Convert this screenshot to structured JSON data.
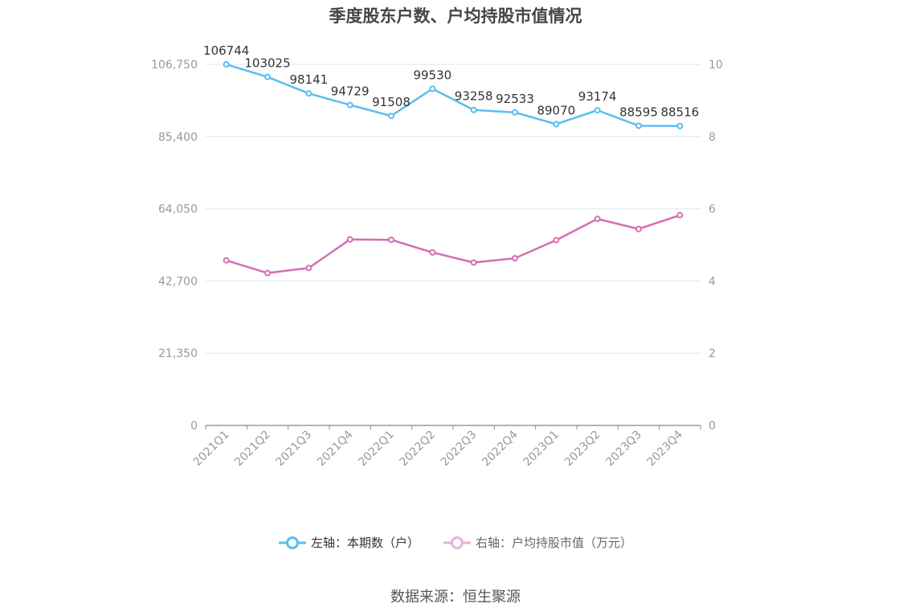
{
  "title": "季度股东户数、户均持股市值情况",
  "source": "数据来源：恒生聚源",
  "colors": {
    "left": "#5bbdee",
    "right": "#d56eb3",
    "grid": "#e3e6f0",
    "axis": "#999999",
    "tick_text": "#999999"
  },
  "chart_data": {
    "type": "line",
    "categories": [
      "2021Q1",
      "2021Q2",
      "2021Q3",
      "2021Q4",
      "2022Q1",
      "2022Q2",
      "2022Q3",
      "2022Q4",
      "2023Q1",
      "2023Q2",
      "2023Q3",
      "2023Q4"
    ],
    "left_axis": {
      "min": 0,
      "max": 106750,
      "ticks": [
        0,
        21350,
        42700,
        64050,
        85400,
        106750
      ],
      "tick_labels": [
        "0",
        "21,350",
        "42,700",
        "64,050",
        "85,400",
        "106,750"
      ]
    },
    "right_axis": {
      "min": 0,
      "max": 10,
      "ticks": [
        0,
        2,
        4,
        6,
        8,
        10
      ],
      "tick_labels": [
        "0",
        "2",
        "4",
        "6",
        "8",
        "10"
      ]
    },
    "series": [
      {
        "name": "左轴：本期数（户）",
        "axis": "left",
        "color": "#5bbdee",
        "values": [
          106744,
          103025,
          98141,
          94729,
          91508,
          99530,
          93258,
          92533,
          89070,
          93174,
          88595,
          88516
        ],
        "labels": [
          "106744",
          "103025",
          "98141",
          "94729",
          "91508",
          "99530",
          "93258",
          "92533",
          "89070",
          "93174",
          "88595",
          "88516"
        ]
      },
      {
        "name": "右轴：户均持股市值（万元）",
        "axis": "right",
        "color": "#d56eb3",
        "values": [
          4.57,
          4.22,
          4.36,
          5.15,
          5.14,
          4.79,
          4.51,
          4.63,
          5.13,
          5.72,
          5.44,
          5.82
        ]
      }
    ],
    "grid": true,
    "legend": "bottom-center"
  }
}
